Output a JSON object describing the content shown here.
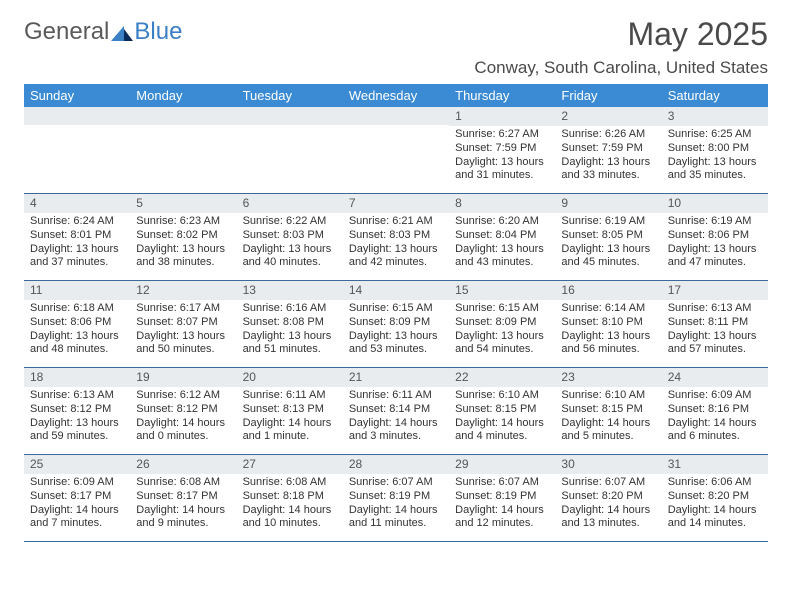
{
  "logo": {
    "text1": "General",
    "text2": "Blue"
  },
  "title": "May 2025",
  "location": "Conway, South Carolina, United States",
  "colors": {
    "header_bg": "#3b8bd4",
    "header_text": "#ffffff",
    "daynum_bg": "#e9ecef",
    "border": "#3b6a9a",
    "logo_gray": "#5a5a5a",
    "logo_blue": "#3b7fc4"
  },
  "dayNames": [
    "Sunday",
    "Monday",
    "Tuesday",
    "Wednesday",
    "Thursday",
    "Friday",
    "Saturday"
  ],
  "weeks": [
    [
      {
        "num": "",
        "lines": []
      },
      {
        "num": "",
        "lines": []
      },
      {
        "num": "",
        "lines": []
      },
      {
        "num": "",
        "lines": []
      },
      {
        "num": "1",
        "lines": [
          "Sunrise: 6:27 AM",
          "Sunset: 7:59 PM",
          "Daylight: 13 hours",
          "and 31 minutes."
        ]
      },
      {
        "num": "2",
        "lines": [
          "Sunrise: 6:26 AM",
          "Sunset: 7:59 PM",
          "Daylight: 13 hours",
          "and 33 minutes."
        ]
      },
      {
        "num": "3",
        "lines": [
          "Sunrise: 6:25 AM",
          "Sunset: 8:00 PM",
          "Daylight: 13 hours",
          "and 35 minutes."
        ]
      }
    ],
    [
      {
        "num": "4",
        "lines": [
          "Sunrise: 6:24 AM",
          "Sunset: 8:01 PM",
          "Daylight: 13 hours",
          "and 37 minutes."
        ]
      },
      {
        "num": "5",
        "lines": [
          "Sunrise: 6:23 AM",
          "Sunset: 8:02 PM",
          "Daylight: 13 hours",
          "and 38 minutes."
        ]
      },
      {
        "num": "6",
        "lines": [
          "Sunrise: 6:22 AM",
          "Sunset: 8:03 PM",
          "Daylight: 13 hours",
          "and 40 minutes."
        ]
      },
      {
        "num": "7",
        "lines": [
          "Sunrise: 6:21 AM",
          "Sunset: 8:03 PM",
          "Daylight: 13 hours",
          "and 42 minutes."
        ]
      },
      {
        "num": "8",
        "lines": [
          "Sunrise: 6:20 AM",
          "Sunset: 8:04 PM",
          "Daylight: 13 hours",
          "and 43 minutes."
        ]
      },
      {
        "num": "9",
        "lines": [
          "Sunrise: 6:19 AM",
          "Sunset: 8:05 PM",
          "Daylight: 13 hours",
          "and 45 minutes."
        ]
      },
      {
        "num": "10",
        "lines": [
          "Sunrise: 6:19 AM",
          "Sunset: 8:06 PM",
          "Daylight: 13 hours",
          "and 47 minutes."
        ]
      }
    ],
    [
      {
        "num": "11",
        "lines": [
          "Sunrise: 6:18 AM",
          "Sunset: 8:06 PM",
          "Daylight: 13 hours",
          "and 48 minutes."
        ]
      },
      {
        "num": "12",
        "lines": [
          "Sunrise: 6:17 AM",
          "Sunset: 8:07 PM",
          "Daylight: 13 hours",
          "and 50 minutes."
        ]
      },
      {
        "num": "13",
        "lines": [
          "Sunrise: 6:16 AM",
          "Sunset: 8:08 PM",
          "Daylight: 13 hours",
          "and 51 minutes."
        ]
      },
      {
        "num": "14",
        "lines": [
          "Sunrise: 6:15 AM",
          "Sunset: 8:09 PM",
          "Daylight: 13 hours",
          "and 53 minutes."
        ]
      },
      {
        "num": "15",
        "lines": [
          "Sunrise: 6:15 AM",
          "Sunset: 8:09 PM",
          "Daylight: 13 hours",
          "and 54 minutes."
        ]
      },
      {
        "num": "16",
        "lines": [
          "Sunrise: 6:14 AM",
          "Sunset: 8:10 PM",
          "Daylight: 13 hours",
          "and 56 minutes."
        ]
      },
      {
        "num": "17",
        "lines": [
          "Sunrise: 6:13 AM",
          "Sunset: 8:11 PM",
          "Daylight: 13 hours",
          "and 57 minutes."
        ]
      }
    ],
    [
      {
        "num": "18",
        "lines": [
          "Sunrise: 6:13 AM",
          "Sunset: 8:12 PM",
          "Daylight: 13 hours",
          "and 59 minutes."
        ]
      },
      {
        "num": "19",
        "lines": [
          "Sunrise: 6:12 AM",
          "Sunset: 8:12 PM",
          "Daylight: 14 hours",
          "and 0 minutes."
        ]
      },
      {
        "num": "20",
        "lines": [
          "Sunrise: 6:11 AM",
          "Sunset: 8:13 PM",
          "Daylight: 14 hours",
          "and 1 minute."
        ]
      },
      {
        "num": "21",
        "lines": [
          "Sunrise: 6:11 AM",
          "Sunset: 8:14 PM",
          "Daylight: 14 hours",
          "and 3 minutes."
        ]
      },
      {
        "num": "22",
        "lines": [
          "Sunrise: 6:10 AM",
          "Sunset: 8:15 PM",
          "Daylight: 14 hours",
          "and 4 minutes."
        ]
      },
      {
        "num": "23",
        "lines": [
          "Sunrise: 6:10 AM",
          "Sunset: 8:15 PM",
          "Daylight: 14 hours",
          "and 5 minutes."
        ]
      },
      {
        "num": "24",
        "lines": [
          "Sunrise: 6:09 AM",
          "Sunset: 8:16 PM",
          "Daylight: 14 hours",
          "and 6 minutes."
        ]
      }
    ],
    [
      {
        "num": "25",
        "lines": [
          "Sunrise: 6:09 AM",
          "Sunset: 8:17 PM",
          "Daylight: 14 hours",
          "and 7 minutes."
        ]
      },
      {
        "num": "26",
        "lines": [
          "Sunrise: 6:08 AM",
          "Sunset: 8:17 PM",
          "Daylight: 14 hours",
          "and 9 minutes."
        ]
      },
      {
        "num": "27",
        "lines": [
          "Sunrise: 6:08 AM",
          "Sunset: 8:18 PM",
          "Daylight: 14 hours",
          "and 10 minutes."
        ]
      },
      {
        "num": "28",
        "lines": [
          "Sunrise: 6:07 AM",
          "Sunset: 8:19 PM",
          "Daylight: 14 hours",
          "and 11 minutes."
        ]
      },
      {
        "num": "29",
        "lines": [
          "Sunrise: 6:07 AM",
          "Sunset: 8:19 PM",
          "Daylight: 14 hours",
          "and 12 minutes."
        ]
      },
      {
        "num": "30",
        "lines": [
          "Sunrise: 6:07 AM",
          "Sunset: 8:20 PM",
          "Daylight: 14 hours",
          "and 13 minutes."
        ]
      },
      {
        "num": "31",
        "lines": [
          "Sunrise: 6:06 AM",
          "Sunset: 8:20 PM",
          "Daylight: 14 hours",
          "and 14 minutes."
        ]
      }
    ]
  ]
}
